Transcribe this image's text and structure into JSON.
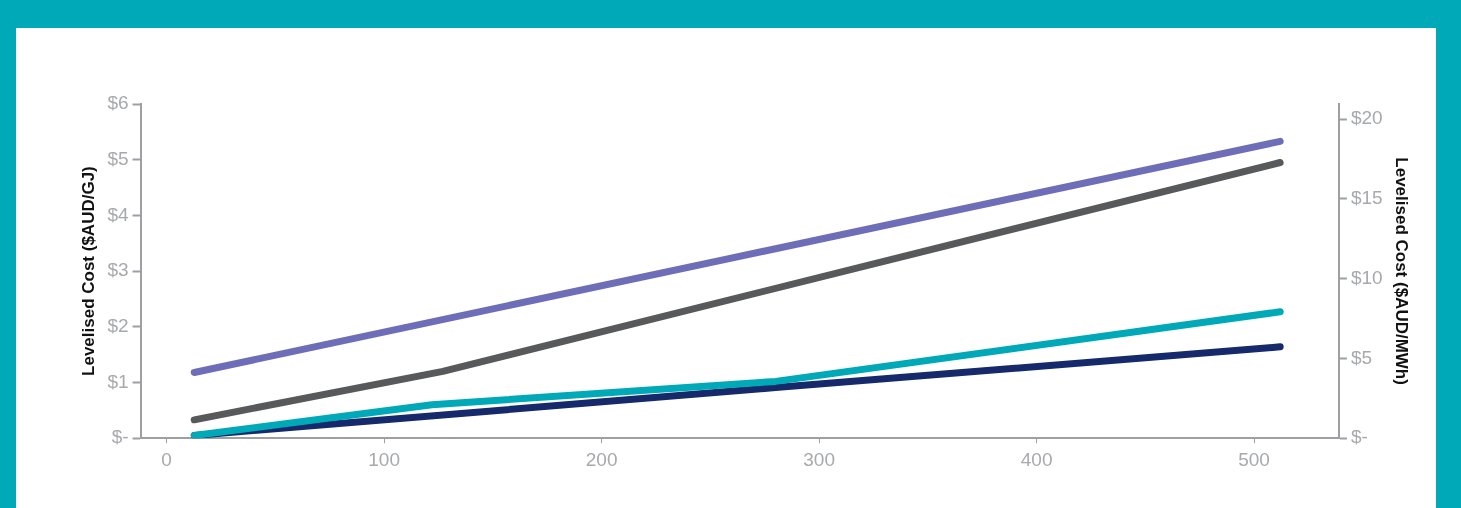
{
  "chart_data": {
    "type": "line",
    "ylabel": "Levelised Cost ($AUD/GJ)",
    "y2label": "Levelised Cost ($AUD/MWh)",
    "xlim": [
      -12,
      539
    ],
    "xticks": [
      0,
      100,
      200,
      300,
      400,
      500
    ],
    "ylim": [
      0,
      6
    ],
    "yticks": [
      {
        "value": 0,
        "label": "$-"
      },
      {
        "value": 1,
        "label": "$1"
      },
      {
        "value": 2,
        "label": "$2"
      },
      {
        "value": 3,
        "label": "$3"
      },
      {
        "value": 4,
        "label": "$4"
      },
      {
        "value": 5,
        "label": "$5"
      },
      {
        "value": 6,
        "label": "$6"
      }
    ],
    "y2lim": [
      0,
      20.95
    ],
    "y2ticks": [
      {
        "value": 0,
        "label": "$-"
      },
      {
        "value": 5,
        "label": "$5"
      },
      {
        "value": 10,
        "label": "$10"
      },
      {
        "value": 15,
        "label": "$15"
      },
      {
        "value": 20,
        "label": "$20"
      }
    ],
    "grid": false,
    "legend": false,
    "marker": "none",
    "line_style": "solid",
    "series": [
      {
        "color": "#6e6eb8",
        "x": [
          12.7,
          512
        ],
        "values": [
          1.18,
          5.33
        ]
      },
      {
        "color": "#58595b",
        "x": [
          12.7,
          127,
          512
        ],
        "values": [
          0.33,
          1.2,
          4.95
        ]
      },
      {
        "color": "#00a9b7",
        "x": [
          12.7,
          122,
          280,
          512
        ],
        "values": [
          0.05,
          0.6,
          1.02,
          2.27
        ]
      },
      {
        "color": "#15296b",
        "x": [
          12.7,
          280,
          512
        ],
        "values": [
          0.05,
          0.91,
          1.64
        ]
      }
    ]
  }
}
